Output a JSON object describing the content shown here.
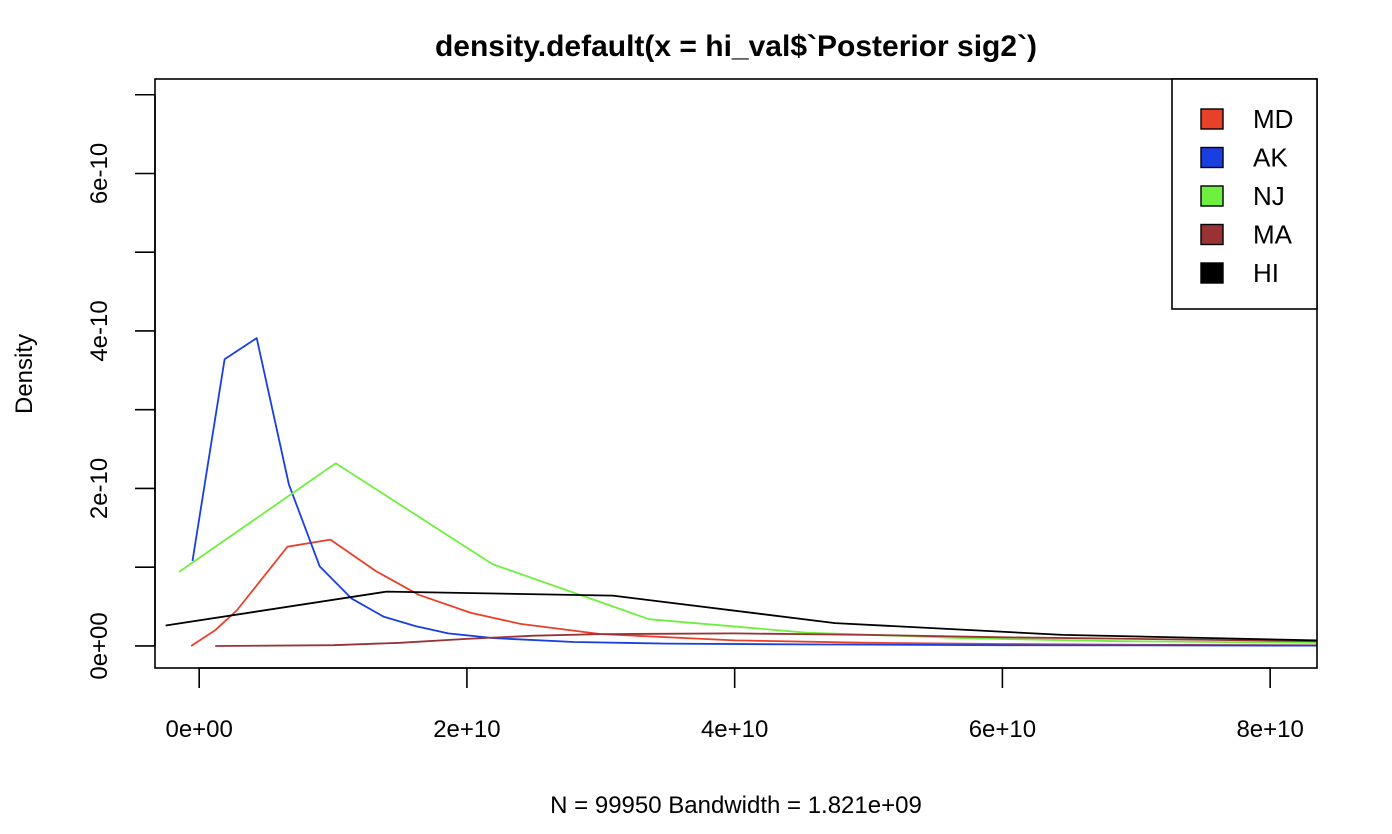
{
  "chart_data": {
    "type": "line",
    "title": "density.default(x = hi_val$`Posterior sig2`)",
    "xlabel": "N = 99950   Bandwidth = 1.821e+09",
    "ylabel": "Density",
    "xlim": [
      -3300000000.0,
      83500000000.0
    ],
    "ylim": [
      -2.8e-11,
      7.2e-10
    ],
    "x_ticks": [
      {
        "value": 0,
        "label": "0e+00"
      },
      {
        "value": 20000000000.0,
        "label": "2e+10"
      },
      {
        "value": 40000000000.0,
        "label": "4e+10"
      },
      {
        "value": 60000000000.0,
        "label": "6e+10"
      },
      {
        "value": 80000000000.0,
        "label": "8e+10"
      }
    ],
    "y_ticks": [
      {
        "value": 0,
        "label": "0e+00"
      },
      {
        "value": 1e-10,
        "label": ""
      },
      {
        "value": 2e-10,
        "label": "2e-10"
      },
      {
        "value": 3e-10,
        "label": ""
      },
      {
        "value": 4e-10,
        "label": "4e-10"
      },
      {
        "value": 5e-10,
        "label": ""
      },
      {
        "value": 6e-10,
        "label": "6e-10"
      },
      {
        "value": 7e-10,
        "label": ""
      }
    ],
    "legend_position": "top-right",
    "grid": false,
    "series": [
      {
        "name": "MD",
        "color": "#E8412A",
        "points": [
          [
            -600000000.0,
            0
          ],
          [
            1200000000.0,
            2e-11
          ],
          [
            2800000000.0,
            4.5e-11
          ],
          [
            6600000000.0,
            1.26e-10
          ],
          [
            9800000000.0,
            1.35e-10
          ],
          [
            13200000000.0,
            9.5e-11
          ],
          [
            16400000000.0,
            6.5e-11
          ],
          [
            20300000000.0,
            4.2e-11
          ],
          [
            24000000000.0,
            2.8e-11
          ],
          [
            30000000000.0,
            1.5e-11
          ],
          [
            40000000000.0,
            7e-12
          ],
          [
            50000000000.0,
            4e-12
          ],
          [
            60000000000.0,
            2.5e-12
          ],
          [
            70000000000.0,
            1.5e-12
          ],
          [
            83500000000.0,
            8e-13
          ]
        ]
      },
      {
        "name": "AK",
        "color": "#1A3FE0",
        "points": [
          [
            -500000000.0,
            1.08e-10
          ],
          [
            1900000000.0,
            3.64e-10
          ],
          [
            4300000000.0,
            3.91e-10
          ],
          [
            6700000000.0,
            2.05e-10
          ],
          [
            9000000000.0,
            1.01e-10
          ],
          [
            11400000000.0,
            6e-11
          ],
          [
            13800000000.0,
            3.7e-11
          ],
          [
            16200000000.0,
            2.5e-11
          ],
          [
            18600000000.0,
            1.6e-11
          ],
          [
            22000000000.0,
            1e-11
          ],
          [
            28000000000.0,
            5e-12
          ],
          [
            35000000000.0,
            3e-12
          ],
          [
            45000000000.0,
            2e-12
          ],
          [
            60000000000.0,
            1e-12
          ],
          [
            83500000000.0,
            5e-13
          ]
        ]
      },
      {
        "name": "NJ",
        "color": "#6FF03F",
        "points": [
          [
            -1500000000.0,
            9.4e-11
          ],
          [
            10200000000.0,
            2.32e-10
          ],
          [
            21900000000.0,
            1.04e-10
          ],
          [
            33600000000.0,
            3.4e-11
          ],
          [
            45300000000.0,
            1.7e-11
          ],
          [
            57000000000.0,
            1e-11
          ],
          [
            68700000000.0,
            6e-12
          ],
          [
            83500000000.0,
            4e-12
          ]
        ]
      },
      {
        "name": "MA",
        "color": "#993333",
        "points": [
          [
            1200000000.0,
            0
          ],
          [
            10000000000.0,
            1e-12
          ],
          [
            15000000000.0,
            4e-12
          ],
          [
            20000000000.0,
            9e-12
          ],
          [
            25000000000.0,
            1.3e-11
          ],
          [
            30000000000.0,
            1.5e-11
          ],
          [
            40000000000.0,
            1.6e-11
          ],
          [
            50000000000.0,
            1.4e-11
          ],
          [
            60000000000.0,
            1.1e-11
          ],
          [
            70000000000.0,
            9e-12
          ],
          [
            83500000000.0,
            6e-12
          ]
        ]
      },
      {
        "name": "HI",
        "color": "#000000",
        "points": [
          [
            -2500000000.0,
            2.6e-11
          ],
          [
            14000000000.0,
            6.9e-11
          ],
          [
            30900000000.0,
            6.4e-11
          ],
          [
            47500000000.0,
            2.9e-11
          ],
          [
            64500000000.0,
            1.4e-11
          ],
          [
            83500000000.0,
            7e-12
          ]
        ]
      }
    ]
  }
}
